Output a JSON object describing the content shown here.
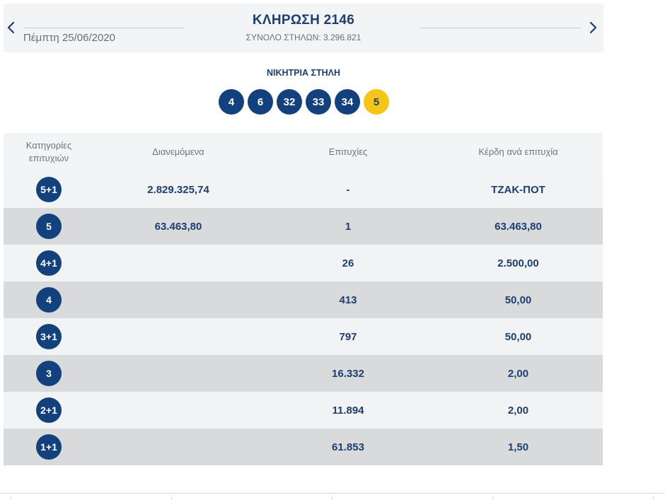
{
  "header": {
    "draw_title": "ΚΛΗΡΩΣΗ 2146",
    "date": "Πέμπτη 25/06/2020",
    "total_columns": "ΣΥΝΟΛΟ ΣΤΗΛΩΝ: 3.296.821",
    "prev_icon": "chevron-left-icon",
    "next_icon": "chevron-right-icon"
  },
  "winning": {
    "label": "ΝΙΚΗΤΡΙΑ ΣΤΗΛΗ",
    "numbers": [
      "4",
      "6",
      "32",
      "33",
      "34"
    ],
    "joker": "5",
    "colors": {
      "number_ball": "#12417e",
      "joker_ball": "#f5c518"
    }
  },
  "table": {
    "headers": {
      "category": "Κατηγορίες επιτυχιών",
      "distributed": "Διανεμόμενα",
      "winners": "Επιτυχίες",
      "prize": "Κέρδη ανά επιτυχία"
    },
    "rows": [
      {
        "category": "5+1",
        "distributed": "2.829.325,74",
        "winners": "-",
        "prize": "ΤΖΑΚ-ΠΟΤ"
      },
      {
        "category": "5",
        "distributed": "63.463,80",
        "winners": "1",
        "prize": "63.463,80"
      },
      {
        "category": "4+1",
        "distributed": "",
        "winners": "26",
        "prize": "2.500,00"
      },
      {
        "category": "4",
        "distributed": "",
        "winners": "413",
        "prize": "50,00"
      },
      {
        "category": "3+1",
        "distributed": "",
        "winners": "797",
        "prize": "50,00"
      },
      {
        "category": "3",
        "distributed": "",
        "winners": "16.332",
        "prize": "2,00"
      },
      {
        "category": "2+1",
        "distributed": "",
        "winners": "11.894",
        "prize": "2,00"
      },
      {
        "category": "1+1",
        "distributed": "",
        "winners": "61.853",
        "prize": "1,50"
      }
    ]
  },
  "theme": {
    "primary": "#1c3e73",
    "header_bg": "#f3f4f5",
    "row_light": "#f2f3f4",
    "row_dark": "#d9dadc"
  }
}
